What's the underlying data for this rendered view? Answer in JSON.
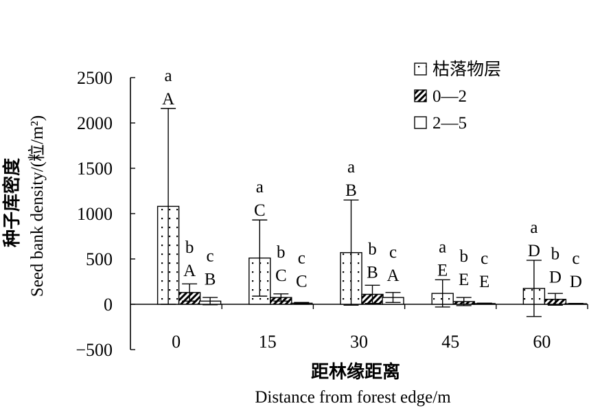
{
  "chart_data": {
    "type": "bar",
    "categories": [
      "0",
      "15",
      "30",
      "45",
      "60"
    ],
    "xlabel_cn": "距林缘距离",
    "xlabel_en": "Distance from forest edge/m",
    "ylabel_cn": "种子库密度",
    "ylabel_en": "Seed bank density/(粒/m²)",
    "yticks": [
      "2500",
      "2000",
      "1500",
      "1000",
      "500",
      "0",
      "−500"
    ],
    "ylim": [
      -500,
      2500
    ],
    "grid": false,
    "legend_position": "top-right",
    "series": [
      {
        "name": "枯落物层",
        "pattern": "dots",
        "values": [
          1080,
          510,
          570,
          120,
          175
        ],
        "errors": [
          1080,
          420,
          580,
          150,
          310
        ],
        "upper_letters": [
          "a",
          "a",
          "a",
          "a",
          "a"
        ],
        "lower_letters": [
          "A",
          "C",
          "B",
          "E",
          "D"
        ]
      },
      {
        "name": "0—2",
        "pattern": "hatch",
        "values": [
          130,
          75,
          110,
          30,
          55
        ],
        "errors": [
          95,
          40,
          100,
          45,
          65
        ],
        "upper_letters": [
          "b",
          "b",
          "b",
          "b",
          "b"
        ],
        "lower_letters": [
          "A",
          "C",
          "B",
          "E",
          "D"
        ]
      },
      {
        "name": "2—5",
        "pattern": "empty",
        "values": [
          35,
          12,
          75,
          8,
          6
        ],
        "errors": [
          40,
          8,
          55,
          5,
          4
        ],
        "upper_letters": [
          "c",
          "c",
          "c",
          "c",
          "c"
        ],
        "lower_letters": [
          "B",
          "C",
          "A",
          "E",
          "D"
        ]
      }
    ]
  }
}
